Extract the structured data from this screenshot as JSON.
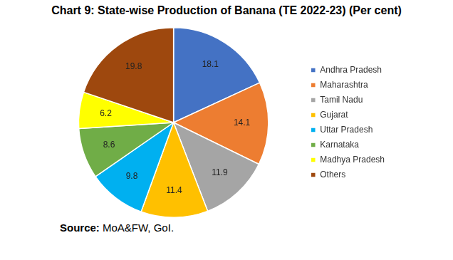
{
  "chart_data": {
    "type": "pie",
    "title": "Chart 9: State-wise Production of Banana (TE 2022-23) (Per cent)",
    "categories": [
      "Andhra Pradesh",
      "Maharashtra",
      "Tamil Nadu",
      "Gujarat",
      "Uttar Pradesh",
      "Karnataka",
      "Madhya Pradesh",
      "Others"
    ],
    "values": [
      18.1,
      14.1,
      11.9,
      11.4,
      9.8,
      8.6,
      6.2,
      19.8
    ],
    "colors": [
      "#4472c4",
      "#ed7d31",
      "#a5a5a5",
      "#ffc000",
      "#00b0f0",
      "#70ad47",
      "#ffff00",
      "#9e480e"
    ],
    "data_labels": true,
    "legend": "right",
    "source": "Source: MoA&FW, GoI."
  }
}
